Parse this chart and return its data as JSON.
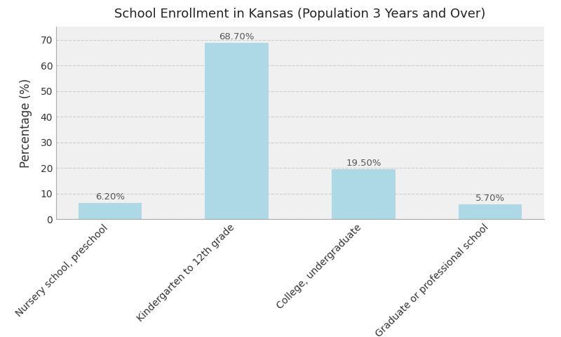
{
  "title": "School Enrollment in Kansas (Population 3 Years and Over)",
  "categories": [
    "Nursery school, preschool",
    "Kindergarten to 12th grade",
    "College, undergraduate",
    "Graduate or professional school"
  ],
  "values": [
    6.2,
    68.7,
    19.5,
    5.7
  ],
  "bar_color": "#add8e6",
  "ylabel": "Percentage (%)",
  "ylim": [
    0,
    75
  ],
  "yticks": [
    0,
    10,
    20,
    30,
    40,
    50,
    60,
    70
  ],
  "plot_bg_color": "#f0f0f0",
  "fig_bg_color": "#ffffff",
  "grid_color": "#cccccc",
  "title_fontsize": 13,
  "axis_label_fontsize": 12,
  "tick_label_fontsize": 10,
  "bar_label_fontsize": 9.5
}
